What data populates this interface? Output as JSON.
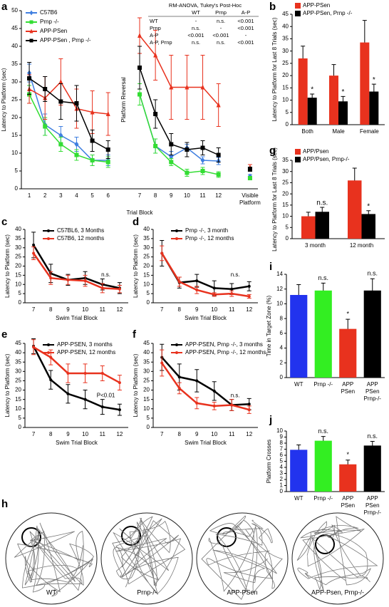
{
  "chart_data": [
    {
      "panel": "a",
      "type": "line",
      "y_label": "Latency to Platform (sec)",
      "x_label": "Trial Block",
      "annotation": "Platform Reversal",
      "categories": [
        "1",
        "2",
        "3",
        "4",
        "5",
        "6",
        null,
        "7",
        "8",
        "9",
        "10",
        "11",
        "12",
        null,
        [
          "Visible",
          "Platform"
        ]
      ],
      "ylim": [
        0,
        50
      ],
      "yticks": [
        0,
        5,
        10,
        15,
        20,
        25,
        30,
        35,
        40,
        45,
        50
      ],
      "legend": "top-left",
      "series": [
        {
          "name": "C57B6",
          "color": "#3f7fe0",
          "marker": "diamond",
          "values": [
            32.5,
            18,
            15,
            12.5,
            8,
            8,
            null,
            26.5,
            12,
            9,
            11.5,
            8,
            7.8,
            null,
            3.5
          ],
          "errors": [
            2.5,
            3,
            2.5,
            2,
            1.5,
            1.5,
            null,
            3,
            2,
            1.5,
            1,
            1,
            1,
            null,
            0.5
          ]
        },
        {
          "name": "Prnp -/-",
          "color": "#33dd33",
          "marker": "square",
          "values": [
            26.5,
            17.5,
            12.5,
            9.5,
            8,
            7.5,
            null,
            26.5,
            12,
            7.5,
            4.5,
            5,
            4,
            null,
            3
          ],
          "errors": [
            2.5,
            2.5,
            2,
            1.5,
            1.5,
            1.5,
            null,
            3,
            2,
            1,
            1,
            1,
            0.8,
            null,
            0.5
          ]
        },
        {
          "name": "APP-PSen",
          "color": "#e8321e",
          "marker": "triangle",
          "values": [
            28,
            25.5,
            30,
            22.5,
            21.5,
            21,
            null,
            43,
            37.5,
            28.5,
            28.5,
            28.5,
            23.5,
            null,
            6
          ],
          "errors": [
            4,
            6,
            6.5,
            5.5,
            6,
            6,
            null,
            5,
            7,
            9,
            9,
            9,
            6,
            null,
            0.8
          ]
        },
        {
          "name": "APP-PSen , Prnp -/-",
          "color": "#000000",
          "marker": "square",
          "values": [
            31,
            28,
            24.5,
            24,
            13.5,
            11,
            null,
            34,
            21,
            12.5,
            11,
            11.5,
            9.5,
            null,
            5.5
          ],
          "errors": [
            4.5,
            3.5,
            5,
            5,
            3,
            2.5,
            null,
            6,
            4,
            3,
            2,
            2,
            2,
            null,
            0.6
          ]
        }
      ],
      "table": {
        "title": "RM-ANOVA, Tukey's Post-Hoc",
        "columns": [
          "WT",
          "Prnp",
          "A-P"
        ],
        "rows": [
          {
            "label": "WT",
            "cells": [
              "-",
              "n.s.",
              "<0.001"
            ]
          },
          {
            "label": "Prnp",
            "cells": [
              "n.s.",
              "-",
              "<0.001"
            ]
          },
          {
            "label": "A-P",
            "cells": [
              "<0.001",
              "<0.001",
              "-"
            ]
          },
          {
            "label": "A-P, Prnp",
            "cells": [
              "n.s.",
              "n.s.",
              "<0.001"
            ]
          }
        ]
      }
    },
    {
      "panel": "b",
      "type": "bar",
      "y_label": "Latency to Platform for Last 8 Trials (sec)",
      "categories": [
        "Both",
        "Male",
        "Female"
      ],
      "ylim": [
        0,
        45
      ],
      "yticks": [
        0,
        5,
        10,
        15,
        20,
        25,
        30,
        35,
        40,
        45
      ],
      "legend": "top-left",
      "series": [
        {
          "name": "APP-PSen",
          "color": "#e8321e",
          "values": [
            27,
            20,
            33.5
          ],
          "errors": [
            5,
            4.5,
            9
          ]
        },
        {
          "name": "APP-PSen, Prnp -/-",
          "color": "#000000",
          "values": [
            11,
            9.5,
            13.5
          ],
          "errors": [
            1.5,
            2,
            3
          ],
          "sig": [
            "*",
            "*",
            "*"
          ]
        }
      ]
    },
    {
      "panel": "g",
      "type": "bar",
      "y_label": "Latency to Platform for Last 8 Trials  (sec)",
      "categories": [
        "3 month",
        "12 month"
      ],
      "ylim": [
        0,
        35
      ],
      "yticks": [
        0,
        5,
        10,
        15,
        20,
        25,
        30,
        35
      ],
      "legend": "top-left",
      "series": [
        {
          "name": "APP/Psen",
          "color": "#e8321e",
          "values": [
            10,
            26
          ],
          "errors": [
            1.8,
            5.5
          ]
        },
        {
          "name": "APP/Psen, Prnp-/-",
          "color": "#000000",
          "values": [
            12,
            11
          ],
          "errors": [
            2,
            1.5
          ],
          "sig": [
            "n.s.",
            "*"
          ]
        }
      ]
    },
    {
      "panel": "c",
      "type": "line",
      "y_label": "Latency to  Platform (sec)",
      "x_label": "Swim Trial Block",
      "annotation": "n.s.",
      "categories": [
        "7",
        "8",
        "9",
        "10",
        "11",
        "12"
      ],
      "ylim": [
        0,
        40
      ],
      "yticks": [
        0,
        5,
        10,
        15,
        20,
        25,
        30,
        35,
        40
      ],
      "legend": "top",
      "series": [
        {
          "name": "C57BL6,  3 Months",
          "color": "#000000",
          "marker": "circle",
          "values": [
            31.5,
            16,
            12.5,
            13.5,
            10,
            8
          ],
          "errors": [
            7,
            5,
            3,
            3.5,
            3,
            3
          ]
        },
        {
          "name": "C57B6, 12 months",
          "color": "#e8321e",
          "marker": "circle",
          "values": [
            27,
            13.5,
            12.5,
            12,
            8,
            7.5
          ],
          "errors": [
            3.5,
            3.5,
            2.5,
            3,
            2.5,
            2
          ]
        }
      ]
    },
    {
      "panel": "d",
      "type": "line",
      "y_label": "Latency to  Platform (sec)",
      "x_label": "Swim Trial Block",
      "annotation": "n.s.",
      "categories": [
        "7",
        "8",
        "9",
        "10",
        "11",
        "12"
      ],
      "ylim": [
        0,
        40
      ],
      "yticks": [
        0,
        5,
        10,
        15,
        20,
        25,
        30,
        35,
        40
      ],
      "legend": "top",
      "series": [
        {
          "name": "Prnp -/-, 3 month",
          "color": "#000000",
          "marker": "circle",
          "values": [
            27,
            11,
            12,
            8,
            7.5,
            9
          ],
          "errors": [
            7,
            3,
            3.5,
            4,
            3,
            2.5
          ]
        },
        {
          "name": "Prnp -/-, 12 months",
          "color": "#e8321e",
          "marker": "circle",
          "values": [
            27,
            11.5,
            7,
            4.5,
            5,
            3.5
          ],
          "errors": [
            4,
            2.5,
            2,
            1,
            1.5,
            1
          ]
        }
      ]
    },
    {
      "panel": "e",
      "type": "line",
      "y_label": "Latency to  Platform (sec)",
      "x_label": "Swim Trial Block",
      "annotation": "P<0.01",
      "categories": [
        "7",
        "8",
        "9",
        "10",
        "11",
        "12"
      ],
      "ylim": [
        0,
        45
      ],
      "yticks": [
        0,
        5,
        10,
        15,
        20,
        25,
        30,
        35,
        40,
        45
      ],
      "legend": "top",
      "series": [
        {
          "name": "APP-PSEN, 3 months",
          "color": "#000000",
          "marker": "circle",
          "values": [
            43.5,
            25.5,
            18,
            15,
            11,
            9.5
          ],
          "errors": [
            4,
            5,
            5,
            5,
            4,
            3
          ]
        },
        {
          "name": "APP-PSEN, 12 months",
          "color": "#e8321e",
          "marker": "circle",
          "values": [
            43,
            37.5,
            29,
            29,
            29,
            24
          ],
          "errors": [
            4,
            4,
            5,
            5,
            4,
            4
          ]
        }
      ]
    },
    {
      "panel": "f",
      "type": "line",
      "y_label": "Latency to Platform (sec)",
      "x_label": "Swim Trial Block",
      "annotation": "n.s.",
      "categories": [
        "7",
        "8",
        "9",
        "10",
        "11",
        "12"
      ],
      "ylim": [
        0,
        45
      ],
      "yticks": [
        0,
        5,
        10,
        15,
        20,
        25,
        30,
        35,
        40,
        45
      ],
      "legend": "top",
      "series": [
        {
          "name": "APP-PSEN, Prnp -/-, 3 months",
          "color": "#000000",
          "marker": "circle",
          "values": [
            37.5,
            27,
            25,
            19.5,
            12,
            12.5
          ],
          "errors": [
            7,
            7,
            6,
            5,
            3,
            3
          ]
        },
        {
          "name": "APP-PSEN, Prnp -/-, 12 months",
          "color": "#e8321e",
          "marker": "circle",
          "values": [
            34.5,
            21,
            13,
            11.5,
            12,
            9.5
          ],
          "errors": [
            7,
            3,
            3,
            2,
            3,
            2
          ]
        }
      ]
    },
    {
      "panel": "i",
      "type": "bar",
      "y_label": "Time in Target Zone (%)",
      "categories": [
        [
          "WT"
        ],
        [
          "Prnp -/-"
        ],
        [
          "APP",
          "PSen"
        ],
        [
          "APP",
          "PSen",
          "Prnp-/-"
        ]
      ],
      "values": [
        11.2,
        11.8,
        6.6,
        11.8
      ],
      "errors": [
        1.4,
        1,
        1.3,
        1.6
      ],
      "colors": [
        "#2233ee",
        "#33ee22",
        "#e8321e",
        "#000000"
      ],
      "bar_labels": [
        null,
        "n.s.",
        "*",
        "n.s."
      ],
      "ylim": [
        0,
        14
      ],
      "yticks": [
        0,
        2,
        4,
        6,
        8,
        10,
        12,
        14
      ]
    },
    {
      "panel": "j",
      "type": "bar",
      "y_label": "Platform Crosses",
      "categories": [
        [
          "WT"
        ],
        [
          "Prnp -/-"
        ],
        [
          "APP",
          "PSen"
        ],
        [
          "APP",
          "PSen",
          "Prnp-/-"
        ]
      ],
      "values": [
        6.9,
        8.4,
        4.5,
        7.6
      ],
      "errors": [
        0.8,
        0.7,
        0.7,
        0.7
      ],
      "colors": [
        "#2233ee",
        "#33ee22",
        "#e8321e",
        "#000000"
      ],
      "bar_labels": [
        null,
        "n.s.",
        "*",
        "n.s."
      ],
      "ylim": [
        0,
        10
      ],
      "yticks": [
        0,
        1,
        2,
        3,
        4,
        5,
        6,
        7,
        8,
        9,
        10
      ]
    }
  ],
  "panel_h": {
    "panel": "h",
    "labels": [
      "WT",
      "Prnp-/-",
      "APP-PSen",
      "APP-Psen, Prnp-/-"
    ]
  }
}
